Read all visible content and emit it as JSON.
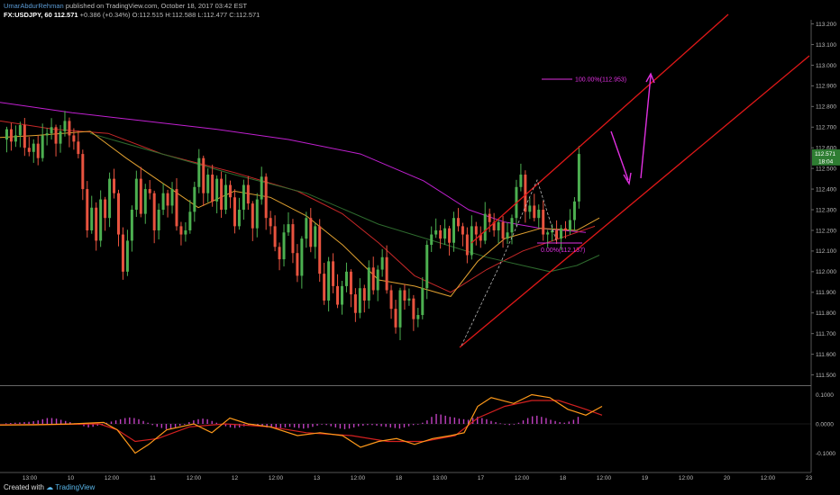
{
  "header": {
    "author": "UmarAbdurRehman",
    "published": "published on TradingView.com, October 18, 2017 03:42 EST",
    "symbol": "FX:USDJPY, 60",
    "close": "112.571",
    "change": "+0.386 (+0.34%)",
    "open": "O:112.515",
    "high": "H:112.588",
    "low": "L:112.477",
    "close_label": "C:112.571"
  },
  "footer": {
    "created_with": "Created with",
    "brand": "TradingView"
  },
  "colors": {
    "bull": "#4caf50",
    "bear": "#e8533f",
    "ma_purple": "#c020d0",
    "ma_red": "#c62828",
    "ma_orange": "#e0a030",
    "ma_green": "#2e6b2e",
    "channel": "#e01818",
    "annot": "#e030e0",
    "macd": "#ff9a1a",
    "signal": "#d42020",
    "hist": "#c040c0",
    "price_badge": "#2e7d32"
  },
  "chart_data": [
    {
      "type": "candlestick",
      "symbol": "FX:USDJPY",
      "timeframe": "60",
      "y_axis": {
        "ylim": [
          111.45,
          113.22
        ],
        "ticks": [
          "113.200",
          "113.100",
          "113.000",
          "112.900",
          "112.800",
          "112.700",
          "112.600",
          "112.500",
          "112.400",
          "112.300",
          "112.200",
          "112.100",
          "112.000",
          "111.900",
          "111.800",
          "111.700",
          "111.600",
          "111.500"
        ]
      },
      "x_axis": {
        "ticks": [
          "13:00",
          "10",
          "12:00",
          "11",
          "12:00",
          "12",
          "12:00",
          "13",
          "12:00",
          "18",
          "13:00",
          "17",
          "12:00",
          "18",
          "12:00",
          "19",
          "12:00",
          "20",
          "12:00",
          "23"
        ]
      },
      "price_badge": {
        "value": "112.571",
        "sub": "18:04"
      },
      "ohlc_path": [
        112.64,
        112.69,
        112.63,
        112.66,
        112.71,
        112.6,
        112.58,
        112.62,
        112.55,
        112.66,
        112.67,
        112.7,
        112.62,
        112.68,
        112.73,
        112.66,
        112.63,
        112.57,
        112.4,
        112.2,
        112.31,
        112.15,
        112.35,
        112.26,
        112.45,
        112.38,
        112.18,
        112.0,
        112.15,
        112.3,
        112.45,
        112.28,
        112.4,
        112.38,
        112.2,
        112.3,
        112.38,
        112.32,
        112.4,
        112.22,
        112.18,
        112.2,
        112.29,
        112.41,
        112.55,
        112.38,
        112.47,
        112.34,
        112.45,
        112.3,
        112.42,
        112.36,
        112.22,
        112.3,
        112.42,
        112.33,
        112.21,
        112.35,
        112.46,
        112.26,
        112.22,
        112.12,
        112.06,
        112.19,
        112.23,
        112.09,
        111.98,
        112.16,
        112.26,
        112.12,
        112.22,
        111.99,
        111.86,
        112.05,
        111.93,
        111.84,
        111.93,
        112.0,
        111.89,
        111.8,
        111.92,
        111.86,
        112.02,
        111.91,
        112.01,
        112.07,
        111.91,
        111.82,
        111.73,
        111.91,
        111.86,
        111.87,
        111.77,
        111.79,
        111.92,
        112.13,
        112.18,
        112.2,
        112.16,
        112.21,
        112.14,
        112.26,
        112.22,
        112.18,
        112.08,
        112.22,
        112.18,
        112.15,
        112.28,
        112.24,
        112.2,
        112.24,
        112.16,
        112.19,
        112.26,
        112.41,
        112.47,
        112.29,
        112.32,
        112.26,
        112.3,
        112.18,
        112.19,
        112.2,
        112.16,
        112.21,
        112.2,
        112.25,
        112.34,
        112.57
      ],
      "lines": [
        {
          "name": "MA purple",
          "points": [
            [
              0,
              112.82
            ],
            [
              80,
              112.77
            ],
            [
              160,
              112.73
            ],
            [
              240,
              112.69
            ],
            [
              320,
              112.64
            ],
            [
              400,
              112.57
            ],
            [
              470,
              112.44
            ],
            [
              520,
              112.3
            ],
            [
              560,
              112.24
            ],
            [
              600,
              112.21
            ],
            [
              650,
              112.19
            ]
          ]
        },
        {
          "name": "MA red",
          "points": [
            [
              0,
              112.73
            ],
            [
              60,
              112.69
            ],
            [
              120,
              112.67
            ],
            [
              180,
              112.57
            ],
            [
              260,
              112.48
            ],
            [
              330,
              112.39
            ],
            [
              380,
              112.28
            ],
            [
              420,
              112.14
            ],
            [
              460,
              111.98
            ],
            [
              500,
              111.9
            ],
            [
              540,
              112.01
            ],
            [
              580,
              112.1
            ],
            [
              620,
              112.16
            ],
            [
              660,
              112.22
            ]
          ]
        },
        {
          "name": "MA green",
          "points": [
            [
              100,
              112.67
            ],
            [
              180,
              112.57
            ],
            [
              260,
              112.47
            ],
            [
              340,
              112.38
            ],
            [
              420,
              112.23
            ],
            [
              480,
              112.15
            ],
            [
              540,
              112.07
            ],
            [
              580,
              112.03
            ],
            [
              610,
              112.0
            ],
            [
              640,
              112.03
            ],
            [
              665,
              112.08
            ]
          ]
        },
        {
          "name": "MA orange",
          "points": [
            [
              0,
              112.65
            ],
            [
              40,
              112.66
            ],
            [
              100,
              112.68
            ],
            [
              140,
              112.55
            ],
            [
              180,
              112.43
            ],
            [
              220,
              112.31
            ],
            [
              260,
              112.39
            ],
            [
              300,
              112.36
            ],
            [
              340,
              112.27
            ],
            [
              380,
              112.13
            ],
            [
              420,
              111.96
            ],
            [
              460,
              111.93
            ],
            [
              500,
              111.88
            ],
            [
              530,
              112.05
            ],
            [
              560,
              112.16
            ],
            [
              600,
              112.21
            ],
            [
              640,
              112.2
            ],
            [
              665,
              112.26
            ]
          ]
        }
      ],
      "annotations": [
        {
          "label": "100.00%(112.953)",
          "value": 112.953
        },
        {
          "label": "0.00%(112.137)",
          "value": 112.137
        }
      ]
    },
    {
      "type": "histogram+line",
      "name": "MACD",
      "y_axis": {
        "ticks": [
          "0.1000",
          "0.0000",
          "-0.1000"
        ],
        "ylim": [
          -0.16,
          0.12
        ]
      },
      "macd": [
        [
          0,
          -0.004
        ],
        [
          40,
          -0.003
        ],
        [
          80,
          0.0
        ],
        [
          115,
          0.005
        ],
        [
          130,
          -0.02
        ],
        [
          150,
          -0.1
        ],
        [
          165,
          -0.07
        ],
        [
          185,
          -0.02
        ],
        [
          215,
          0.0
        ],
        [
          235,
          -0.03
        ],
        [
          255,
          0.02
        ],
        [
          275,
          0.0
        ],
        [
          300,
          -0.01
        ],
        [
          330,
          -0.04
        ],
        [
          355,
          -0.03
        ],
        [
          380,
          -0.04
        ],
        [
          400,
          -0.08
        ],
        [
          420,
          -0.06
        ],
        [
          440,
          -0.05
        ],
        [
          460,
          -0.07
        ],
        [
          480,
          -0.05
        ],
        [
          500,
          -0.04
        ],
        [
          515,
          -0.03
        ],
        [
          530,
          0.06
        ],
        [
          545,
          0.09
        ],
        [
          570,
          0.07
        ],
        [
          590,
          0.1
        ],
        [
          610,
          0.09
        ],
        [
          630,
          0.05
        ],
        [
          650,
          0.03
        ],
        [
          668,
          0.06
        ]
      ],
      "signal": [
        [
          0,
          -0.003
        ],
        [
          60,
          -0.002
        ],
        [
          110,
          0.0
        ],
        [
          130,
          -0.02
        ],
        [
          150,
          -0.06
        ],
        [
          175,
          -0.05
        ],
        [
          210,
          -0.01
        ],
        [
          250,
          0.0
        ],
        [
          300,
          -0.01
        ],
        [
          340,
          -0.03
        ],
        [
          390,
          -0.04
        ],
        [
          430,
          -0.06
        ],
        [
          470,
          -0.06
        ],
        [
          505,
          -0.04
        ],
        [
          530,
          0.02
        ],
        [
          560,
          0.06
        ],
        [
          590,
          0.08
        ],
        [
          620,
          0.08
        ],
        [
          650,
          0.05
        ],
        [
          668,
          0.03
        ]
      ],
      "histogram": [
        0.002,
        0.003,
        0.004,
        0.005,
        0.006,
        0.007,
        0.009,
        0.012,
        0.016,
        0.02,
        0.02,
        0.018,
        0.014,
        0.01,
        0.006,
        0.002,
        -0.003,
        -0.008,
        -0.012,
        -0.01,
        -0.006,
        0.0,
        0.004,
        0.008,
        0.012,
        0.016,
        0.02,
        0.022,
        0.02,
        0.016,
        0.01,
        0.004,
        -0.004,
        -0.01,
        -0.014,
        -0.018,
        -0.016,
        -0.012,
        -0.006,
        0.0,
        0.006,
        0.012,
        0.016,
        0.018,
        0.016,
        0.01,
        0.004,
        -0.002,
        -0.008,
        -0.012,
        -0.014,
        -0.012,
        -0.008,
        -0.004,
        -0.002,
        -0.004,
        -0.008,
        -0.012,
        -0.014,
        -0.016,
        -0.014,
        -0.012,
        -0.01,
        -0.012,
        -0.014,
        -0.016,
        -0.014,
        -0.01,
        -0.006,
        -0.002,
        -0.004,
        -0.008,
        -0.012,
        -0.016,
        -0.018,
        -0.016,
        -0.012,
        -0.008,
        -0.006,
        -0.004,
        -0.004,
        -0.006,
        -0.008,
        -0.01,
        -0.012,
        -0.014,
        -0.016,
        -0.012,
        -0.008,
        -0.004,
        0.0,
        0.004,
        0.012,
        0.024,
        0.034,
        0.032,
        0.028,
        0.024,
        0.022,
        0.018,
        0.016,
        0.014,
        0.02,
        0.024,
        0.02,
        0.016,
        0.01,
        0.006,
        0.002,
        -0.002,
        -0.004,
        -0.002,
        0.004,
        0.012,
        0.02,
        0.026,
        0.028,
        0.024,
        0.02,
        0.014,
        0.01,
        0.006,
        0.004,
        0.008,
        0.014,
        0.024
      ]
    }
  ]
}
